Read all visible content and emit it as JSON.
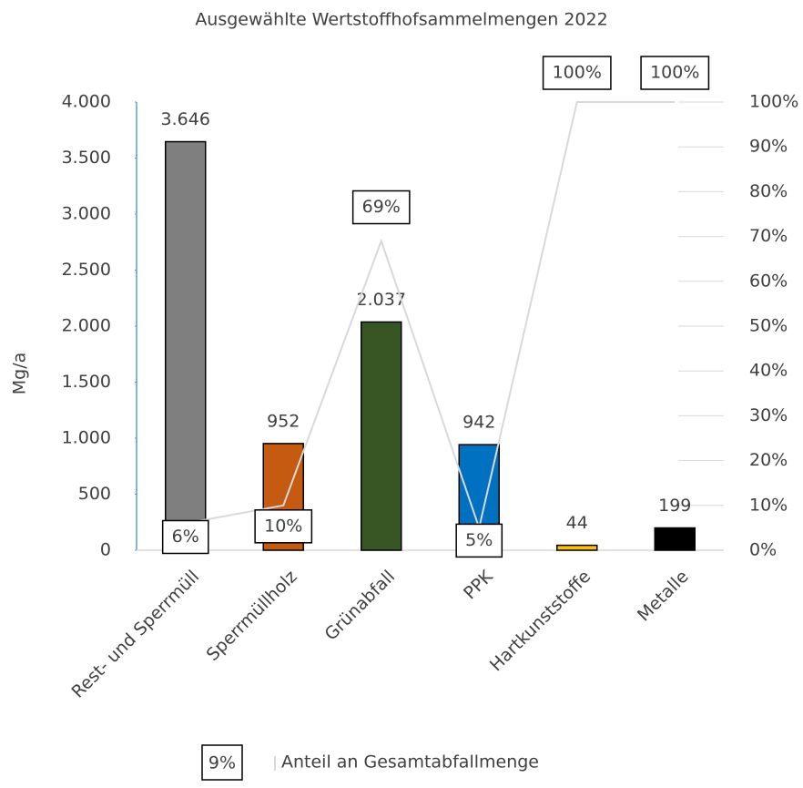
{
  "chart_data": {
    "type": "bar",
    "title": "Ausgewählte Wertstoffhofsammelmengen 2022",
    "y_label": "Mg/a",
    "categories": [
      "Rest- und Sperrmüll",
      "Sperrmüllholz",
      "Grünabfall",
      "PPK",
      "Hartkunststoffe",
      "Metalle"
    ],
    "series": [
      {
        "type": "bar",
        "colors": [
          "#7f7f7f",
          "#c55a11",
          "#375623",
          "#0070c0",
          "#ffc000",
          "#000000"
        ],
        "values": [
          3646,
          952,
          2037,
          942,
          44,
          199
        ],
        "value_labels": [
          "3.646",
          "952",
          "2.037",
          "942",
          "44",
          "199"
        ]
      },
      {
        "type": "line",
        "name": "Anteil an Gesamtabfallmenge",
        "axis": "y2",
        "color": "#d9d9d9",
        "values": [
          6,
          10,
          69,
          5,
          100,
          100
        ],
        "value_labels": [
          "6%",
          "10%",
          "69%",
          "5%",
          "100%",
          "100%"
        ]
      }
    ],
    "ylim": [
      0,
      4000
    ],
    "yticks": [
      0,
      500,
      {
        "value": 1000,
        "label": "1.000"
      },
      {
        "value": 1500,
        "label": "1.500"
      },
      {
        "value": 2000,
        "label": "2.000"
      },
      {
        "value": 2500,
        "label": "2.500"
      },
      {
        "value": 3000,
        "label": "3.000"
      },
      {
        "value": 3500,
        "label": "3.500"
      },
      {
        "value": 4000,
        "label": "4.000"
      }
    ],
    "y2lim": [
      0,
      100
    ],
    "y2ticks": [
      {
        "value": 0,
        "label": "0%"
      },
      {
        "value": 10,
        "label": "10%"
      },
      {
        "value": 20,
        "label": "20%"
      },
      {
        "value": 30,
        "label": "30%"
      },
      {
        "value": 40,
        "label": "40%"
      },
      {
        "value": 50,
        "label": "50%"
      },
      {
        "value": 60,
        "label": "60%"
      },
      {
        "value": 70,
        "label": "70%"
      },
      {
        "value": 80,
        "label": "80%"
      },
      {
        "value": 90,
        "label": "90%"
      },
      {
        "value": 100,
        "label": "100%"
      }
    ],
    "legend": "bottom",
    "legend_sample_label": "9%"
  }
}
